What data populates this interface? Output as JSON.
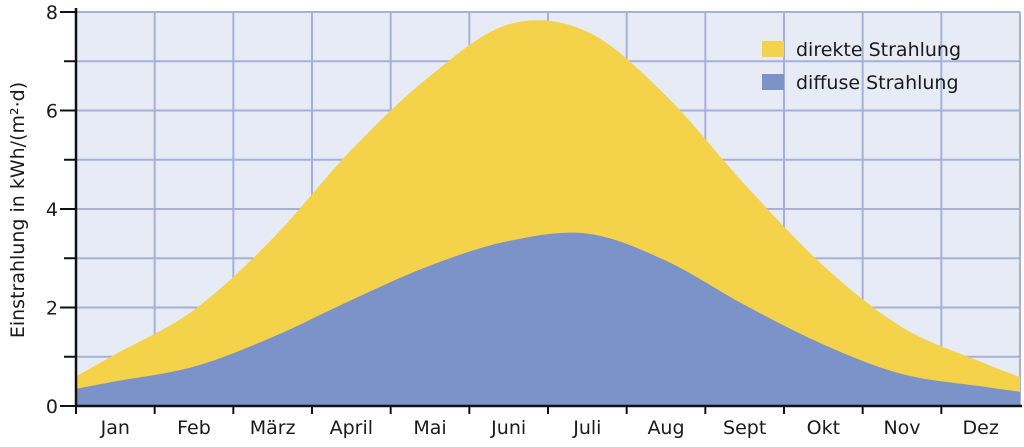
{
  "chart_data": {
    "type": "area",
    "stacked": true,
    "title": "",
    "xlabel": "",
    "ylabel": "Einstrahlung in kWh/(m²·d)",
    "ylim": [
      0,
      8
    ],
    "yticks": [
      "0",
      "2",
      "4",
      "6",
      "8"
    ],
    "categories": [
      "Jan",
      "Feb",
      "März",
      "April",
      "Mai",
      "Juni",
      "Juli",
      "Aug",
      "Sept",
      "Okt",
      "Nov",
      "Dez"
    ],
    "series": [
      {
        "name": "diffuse Strahlung",
        "color": "#7b93c9",
        "values": [
          0.5,
          0.8,
          1.4,
          2.15,
          2.85,
          3.35,
          3.5,
          2.95,
          2.05,
          1.25,
          0.65,
          0.4
        ]
      },
      {
        "name": "direkte Strahlung",
        "color": "#f4d24a",
        "total_values": [
          1.05,
          1.95,
          3.4,
          5.2,
          6.7,
          7.75,
          7.6,
          6.3,
          4.5,
          2.85,
          1.6,
          0.9
        ]
      }
    ],
    "legend_position": "top-right",
    "grid": true,
    "colors": {
      "plot_background": "#e6ebf6",
      "grid": "#a7b0d8"
    }
  }
}
